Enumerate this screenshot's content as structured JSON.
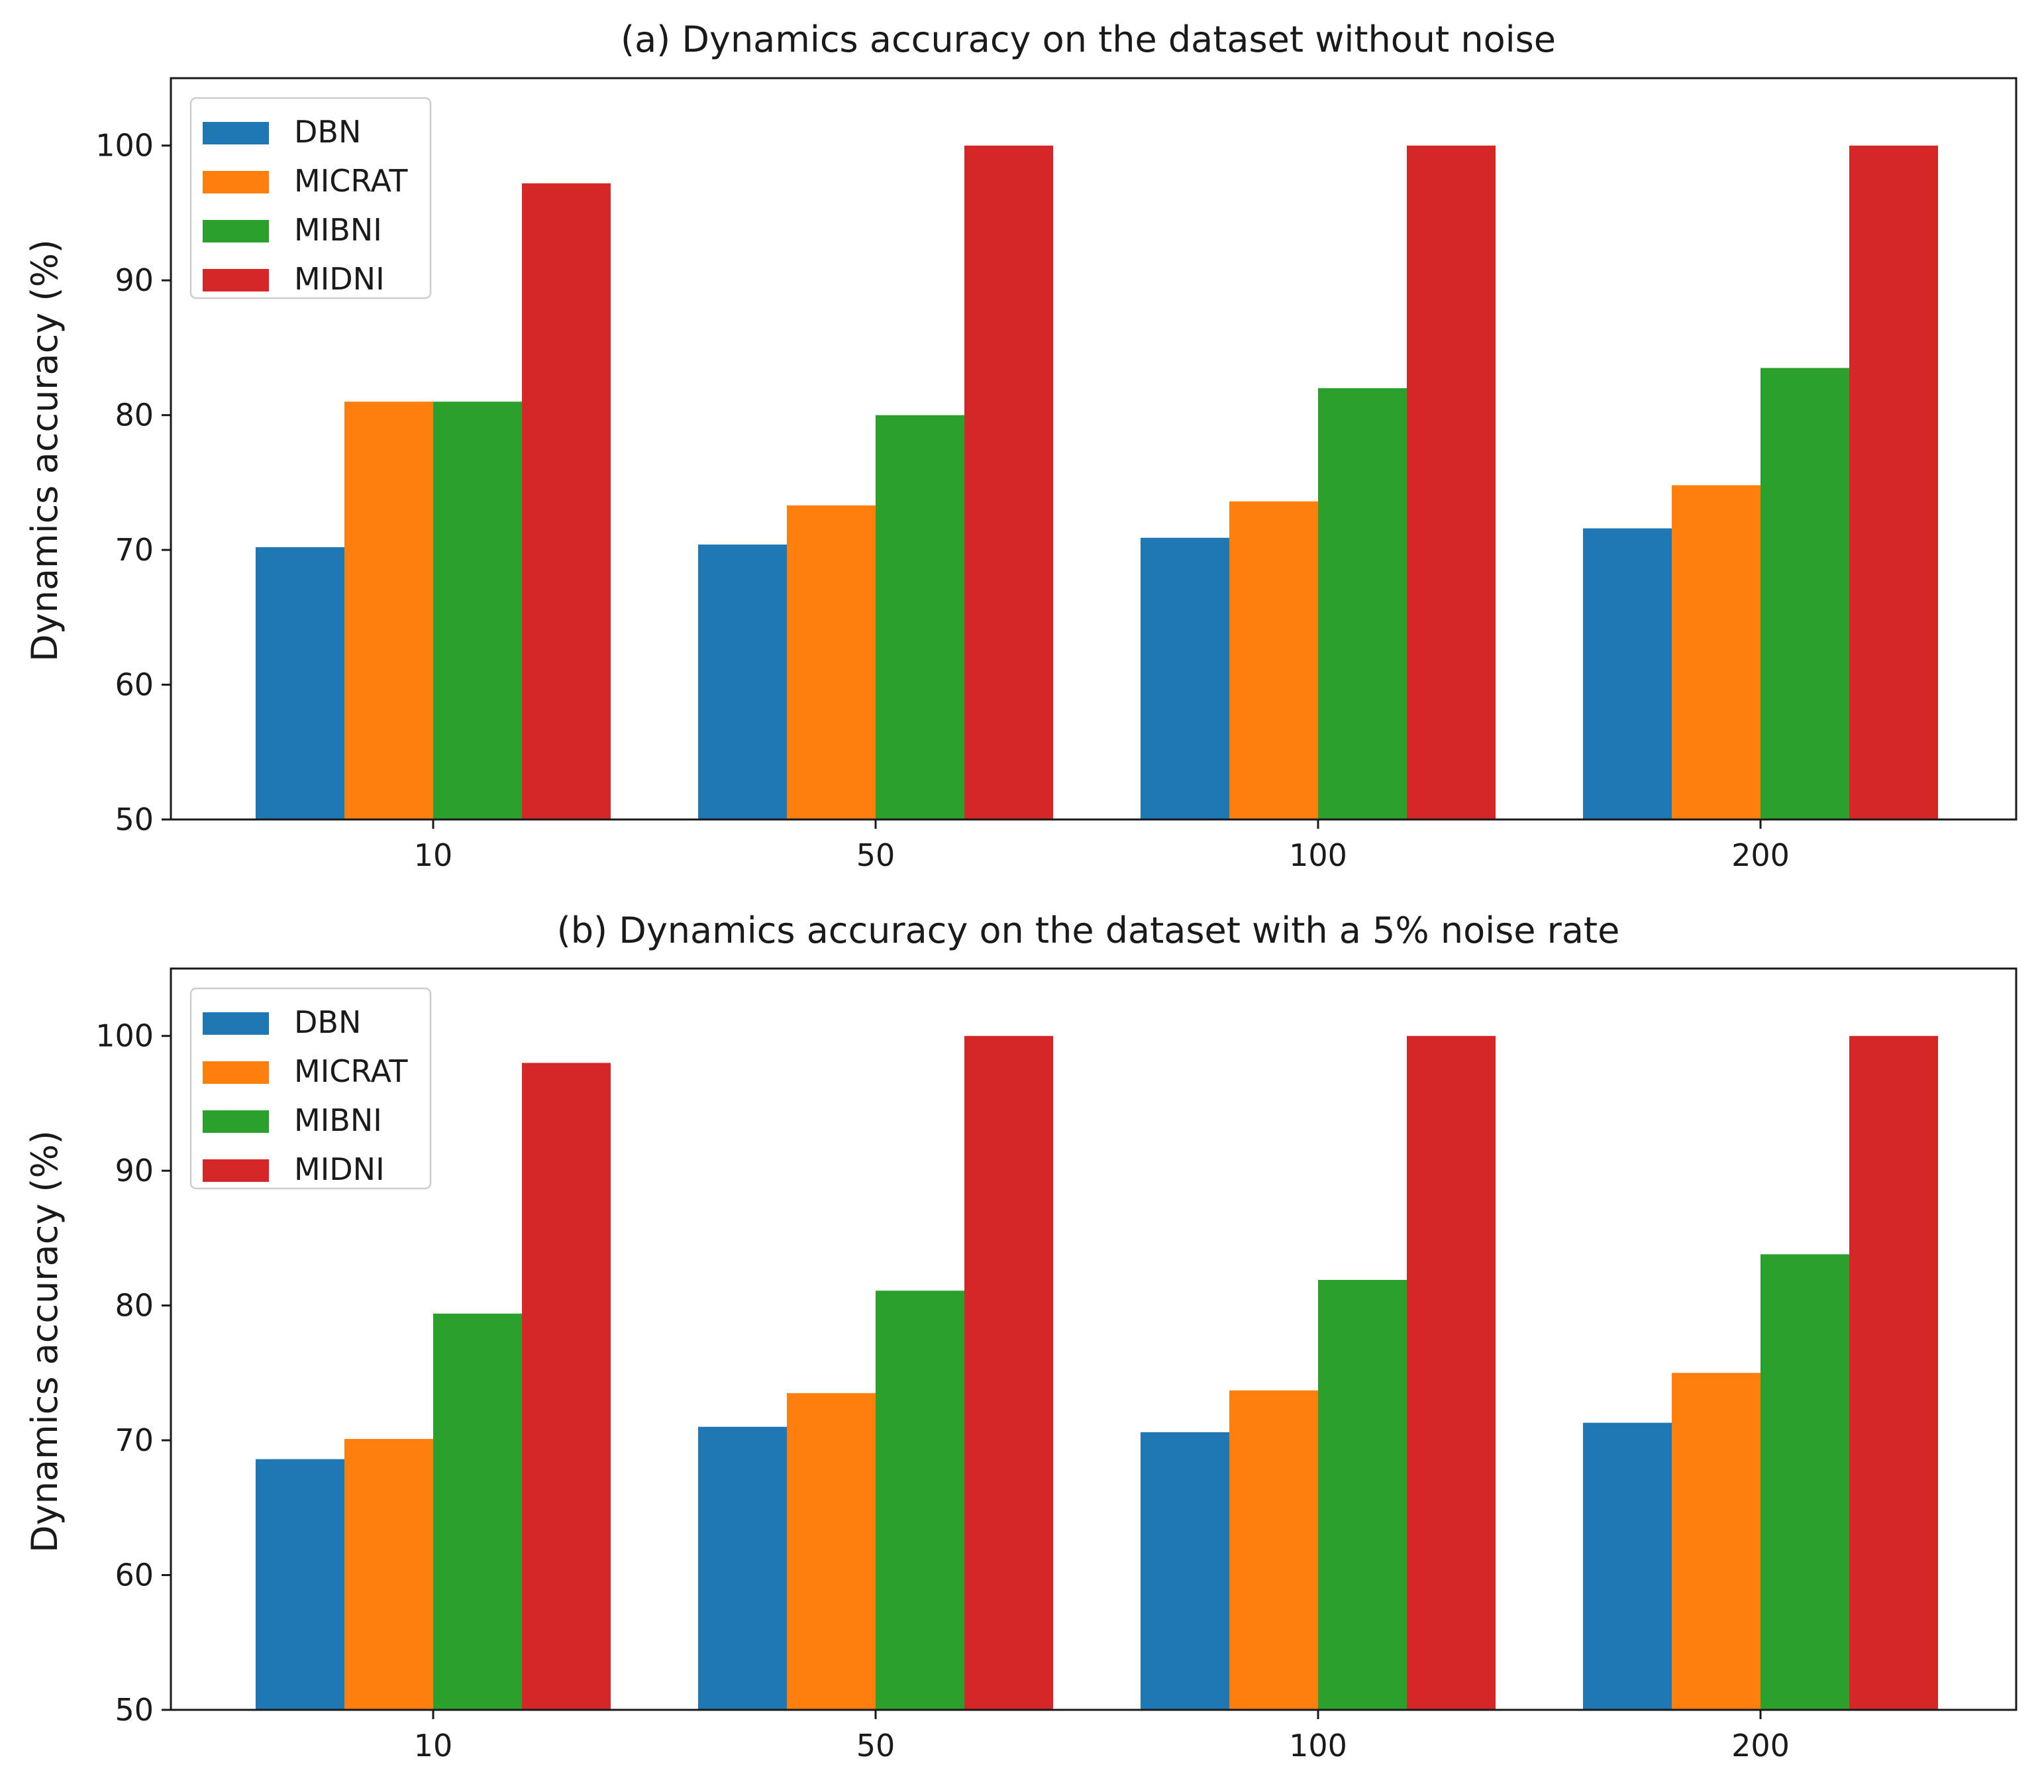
{
  "chart_data": [
    {
      "type": "bar",
      "title": "(a) Dynamics accuracy on the dataset without noise",
      "xlabel": "",
      "ylabel": "Dynamics accuracy (%)",
      "ylim": [
        50,
        105
      ],
      "yticks": [
        50,
        60,
        70,
        80,
        90,
        100
      ],
      "grid": false,
      "legend_position": "top-left",
      "categories": [
        "10",
        "50",
        "100",
        "200"
      ],
      "series": [
        {
          "name": "DBN",
          "color": "#1f77b4",
          "values": [
            70.2,
            70.4,
            70.9,
            71.6
          ]
        },
        {
          "name": "MICRAT",
          "color": "#ff7f0e",
          "values": [
            81.0,
            73.3,
            73.6,
            74.8
          ]
        },
        {
          "name": "MIBNI",
          "color": "#2ca02c",
          "values": [
            81.0,
            80.0,
            82.0,
            83.5
          ]
        },
        {
          "name": "MIDNI",
          "color": "#d62728",
          "values": [
            97.2,
            100.0,
            100.0,
            100.0
          ]
        }
      ]
    },
    {
      "type": "bar",
      "title": "(b) Dynamics accuracy on the dataset with a 5% noise rate",
      "xlabel": "",
      "ylabel": "Dynamics accuracy (%)",
      "ylim": [
        50,
        105
      ],
      "yticks": [
        50,
        60,
        70,
        80,
        90,
        100
      ],
      "grid": false,
      "legend_position": "top-left",
      "categories": [
        "10",
        "50",
        "100",
        "200"
      ],
      "series": [
        {
          "name": "DBN",
          "color": "#1f77b4",
          "values": [
            68.6,
            71.0,
            70.6,
            71.3
          ]
        },
        {
          "name": "MICRAT",
          "color": "#ff7f0e",
          "values": [
            70.1,
            73.5,
            73.7,
            75.0
          ]
        },
        {
          "name": "MIBNI",
          "color": "#2ca02c",
          "values": [
            79.4,
            81.1,
            81.9,
            83.8
          ]
        },
        {
          "name": "MIDNI",
          "color": "#d62728",
          "values": [
            98.0,
            100.0,
            100.0,
            100.0
          ]
        }
      ]
    }
  ]
}
